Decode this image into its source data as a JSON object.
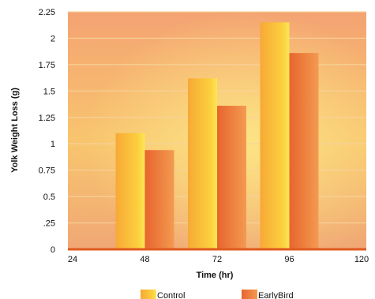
{
  "chart_data": {
    "type": "bar",
    "xlabel": "Time (hr)",
    "ylabel": "Yolk Weight Loss (g)",
    "x_ticks": [
      "24",
      "48",
      "72",
      "96",
      "120"
    ],
    "categories": [
      "48",
      "72",
      "96"
    ],
    "y_ticks": [
      "0",
      ".25",
      "0.5",
      "0.75",
      "1",
      "1.25",
      "1.5",
      "1.75",
      "2",
      "2.25"
    ],
    "ylim": [
      0,
      2.25
    ],
    "grid": true,
    "legend_position": "bottom",
    "series": [
      {
        "name": "Control",
        "values": [
          1.1,
          1.62,
          2.15
        ],
        "color": "#f5b72d"
      },
      {
        "name": "EarlyBird",
        "values": [
          0.94,
          1.36,
          1.86
        ],
        "color": "#e8743a"
      }
    ],
    "colors": {
      "background_top": "#f6a66e",
      "background_bottom": "#f0af75",
      "baseline": "#e05a20",
      "grid": "#f7d29a"
    }
  }
}
